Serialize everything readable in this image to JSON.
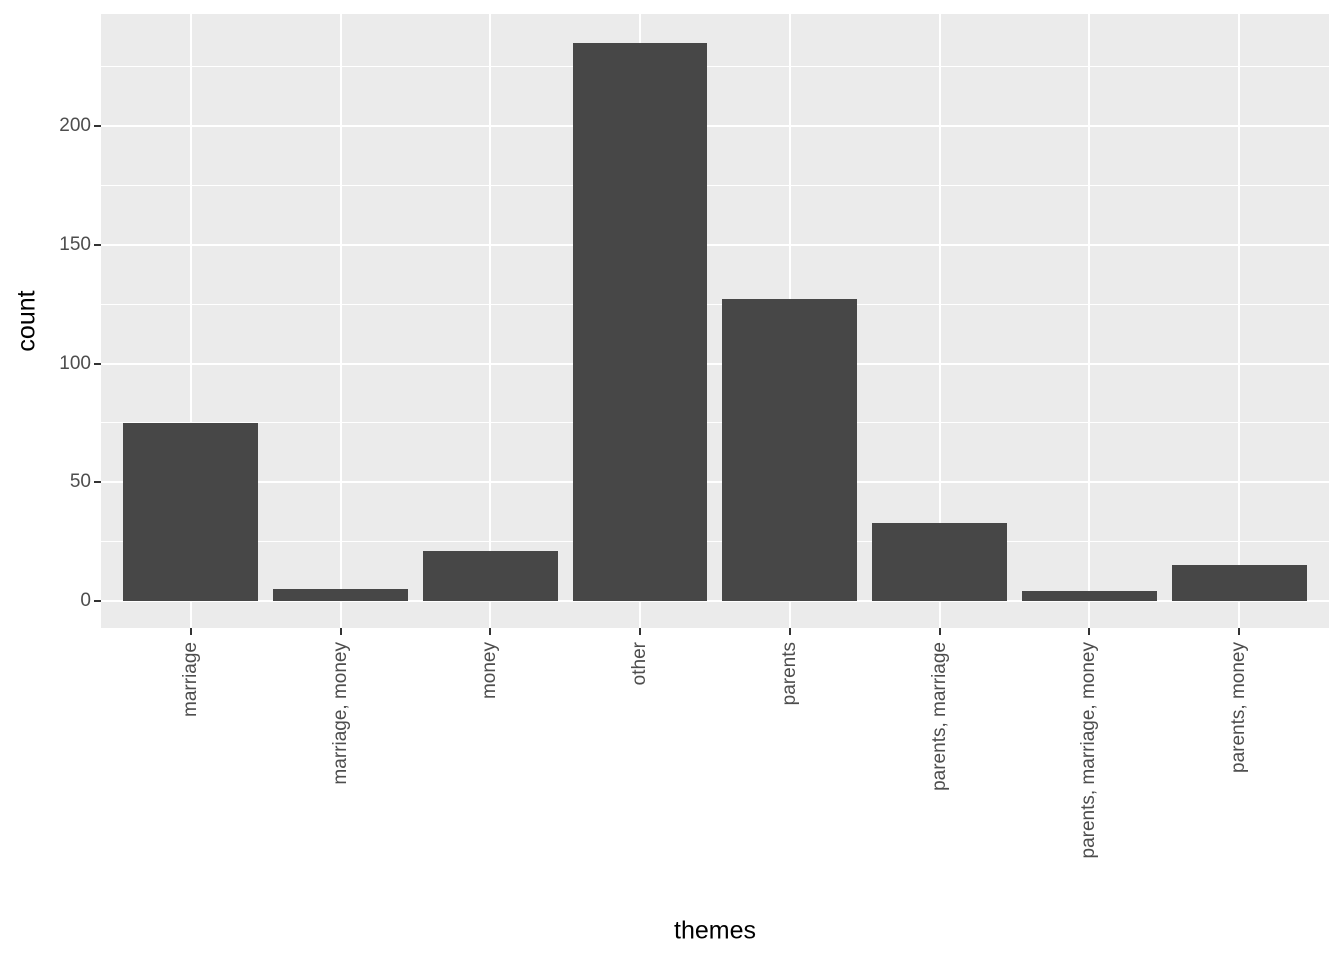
{
  "figure": {
    "xlabel": "themes",
    "ylabel": "count"
  },
  "chart_data": {
    "type": "bar",
    "title": "",
    "xlabel": "themes",
    "ylabel": "count",
    "categories": [
      "marriage",
      "marriage, money",
      "money",
      "other",
      "parents",
      "parents, marriage",
      "parents, marriage, money",
      "parents, money"
    ],
    "values": [
      75,
      5,
      21,
      235,
      127,
      33,
      4,
      15
    ],
    "y_ticks_major": [
      0,
      50,
      100,
      150,
      200
    ],
    "y_ticks_minor": [
      25,
      75,
      125,
      175,
      225
    ],
    "ylim": [
      -11.4,
      247.2
    ],
    "grid": "on",
    "legend": "none",
    "colors": {
      "bar_fill": "#474747",
      "panel_bg": "#EBEBEB",
      "gridline": "#FFFFFF",
      "tick_label": "#4D4D4D",
      "tick_mark": "#333333",
      "axis_title": "#000000",
      "background": "#FFFFFF"
    }
  }
}
